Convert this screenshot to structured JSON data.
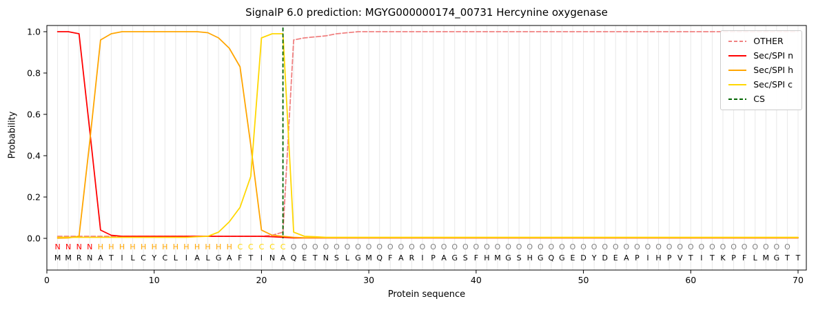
{
  "figure": {
    "title": "SignalP 6.0 prediction: MGYG000000174_00731 Hercynine oxygenase",
    "xlabel": "Protein sequence",
    "ylabel": "Probability"
  },
  "region_colors": {
    "N": "#ff0000",
    "H": "#ffa500",
    "C": "#ffd700",
    "O": "#7f7f7f"
  },
  "chart_data": {
    "type": "line",
    "title": "SignalP 6.0 prediction: MGYG000000174_00731 Hercynine oxygenase",
    "xlabel": "Protein sequence",
    "ylabel": "Probability",
    "xlim": [
      0,
      70.8
    ],
    "ylim": [
      -0.15,
      1.03
    ],
    "x_ticks": [
      0,
      10,
      20,
      30,
      40,
      50,
      60,
      70
    ],
    "y_ticks": [
      0.0,
      0.2,
      0.4,
      0.6,
      0.8,
      1.0
    ],
    "grid": "faint vertical gridline at every residue position",
    "legend_position": "upper right",
    "sequence": "MMRNATILCYCLIALGAFTINAQETNSLGMQFARIPAGSFHMGSHGQGEDYDEAPIHPVTITKPFLMGTT",
    "region_labels": "NNNNHHHHHHHHHHHHHCCCCCOOOOOOOOOOOOOOOOOOOOOOOOOOOOOOOOOOOOOOOOOOOOOOO",
    "cs_marker": {
      "label": "CS",
      "position": 22,
      "color": "#006400",
      "style": "dashed"
    },
    "series": [
      {
        "name": "OTHER",
        "color": "#f08080",
        "style": "dashed",
        "values": [
          0.01,
          0.01,
          0.01,
          0.01,
          0.01,
          0.01,
          0.01,
          0.01,
          0.01,
          0.01,
          0.01,
          0.01,
          0.01,
          0.01,
          0.01,
          0.01,
          0.01,
          0.01,
          0.01,
          0.01,
          0.015,
          0.03,
          0.96,
          0.97,
          0.975,
          0.98,
          0.99,
          0.995,
          1.0,
          1.0,
          1.0,
          1.0,
          1.0,
          1.0,
          1.0,
          1.0,
          1.0,
          1.0,
          1.0,
          1.0,
          1.0,
          1.0,
          1.0,
          1.0,
          1.0,
          1.0,
          1.0,
          1.0,
          1.0,
          1.0,
          1.0,
          1.0,
          1.0,
          1.0,
          1.0,
          1.0,
          1.0,
          1.0,
          1.0,
          1.0,
          1.0,
          1.0,
          1.0,
          1.0,
          1.0,
          1.0,
          1.0,
          1.0,
          1.0,
          1.0
        ]
      },
      {
        "name": "Sec/SPI n",
        "color": "#ff0000",
        "style": "solid",
        "values": [
          1.0,
          1.0,
          0.99,
          0.52,
          0.04,
          0.015,
          0.01,
          0.01,
          0.01,
          0.01,
          0.01,
          0.01,
          0.01,
          0.01,
          0.01,
          0.01,
          0.01,
          0.01,
          0.01,
          0.01,
          0.008,
          0.005,
          0.002,
          0.002,
          0.002,
          0.002,
          0.002,
          0.002,
          0.002,
          0.002,
          0.002,
          0.002,
          0.002,
          0.002,
          0.002,
          0.002,
          0.002,
          0.002,
          0.002,
          0.002,
          0.002,
          0.002,
          0.002,
          0.002,
          0.002,
          0.002,
          0.002,
          0.002,
          0.002,
          0.002,
          0.002,
          0.002,
          0.002,
          0.002,
          0.002,
          0.002,
          0.002,
          0.002,
          0.002,
          0.002,
          0.002,
          0.002,
          0.002,
          0.002,
          0.002,
          0.002,
          0.002,
          0.002,
          0.002,
          0.002
        ]
      },
      {
        "name": "Sec/SPI h",
        "color": "#ffa500",
        "style": "solid",
        "values": [
          0.001,
          0.002,
          0.01,
          0.47,
          0.96,
          0.99,
          1.0,
          1.0,
          1.0,
          1.0,
          1.0,
          1.0,
          1.0,
          1.0,
          0.995,
          0.97,
          0.92,
          0.83,
          0.45,
          0.04,
          0.015,
          0.01,
          0.005,
          0.003,
          0.003,
          0.003,
          0.003,
          0.003,
          0.003,
          0.003,
          0.003,
          0.003,
          0.003,
          0.003,
          0.003,
          0.003,
          0.003,
          0.003,
          0.003,
          0.003,
          0.003,
          0.003,
          0.003,
          0.003,
          0.003,
          0.003,
          0.003,
          0.003,
          0.003,
          0.003,
          0.003,
          0.003,
          0.003,
          0.003,
          0.003,
          0.003,
          0.003,
          0.003,
          0.003,
          0.003,
          0.003,
          0.003,
          0.003,
          0.003,
          0.003,
          0.003,
          0.003,
          0.003,
          0.003,
          0.003
        ]
      },
      {
        "name": "Sec/SPI c",
        "color": "#ffd700",
        "style": "solid",
        "values": [
          0.005,
          0.005,
          0.005,
          0.005,
          0.005,
          0.005,
          0.005,
          0.005,
          0.005,
          0.005,
          0.005,
          0.005,
          0.005,
          0.008,
          0.01,
          0.03,
          0.08,
          0.15,
          0.3,
          0.97,
          0.99,
          0.99,
          0.03,
          0.01,
          0.008,
          0.005,
          0.005,
          0.005,
          0.005,
          0.005,
          0.005,
          0.005,
          0.005,
          0.005,
          0.005,
          0.005,
          0.005,
          0.005,
          0.005,
          0.005,
          0.005,
          0.005,
          0.005,
          0.005,
          0.005,
          0.005,
          0.005,
          0.005,
          0.005,
          0.005,
          0.005,
          0.005,
          0.005,
          0.005,
          0.005,
          0.005,
          0.005,
          0.005,
          0.005,
          0.005,
          0.005,
          0.005,
          0.005,
          0.005,
          0.005,
          0.005,
          0.005,
          0.005,
          0.005,
          0.005
        ]
      }
    ]
  }
}
